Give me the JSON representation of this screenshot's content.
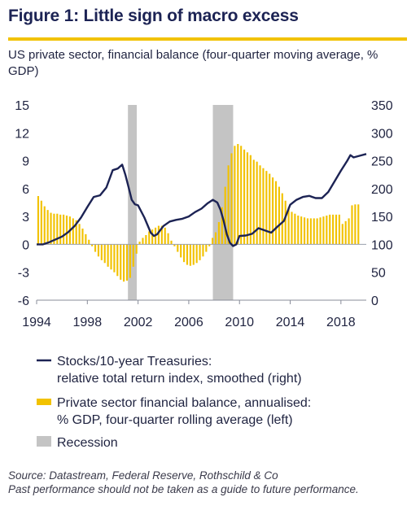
{
  "figure": {
    "title": "Figure 1: Little sign of macro excess",
    "subtitle": "US private sector, financial balance (four-quarter moving average, % GDP)",
    "source_line1": "Source: Datastream, Federal Reserve, Rothschild & Co",
    "source_line2": "Past performance should not be taken as a guide to future performance."
  },
  "colors": {
    "title": "#1c2354",
    "rule": "#f2c200",
    "bars": "#f2c200",
    "line": "#1c2354",
    "recession": "#c4c4c4"
  },
  "chart_data": {
    "type": "bar",
    "x_ticks": [
      1994,
      1998,
      2002,
      2006,
      2010,
      2014,
      2018
    ],
    "x_tick_labels": [
      "1994",
      "1998",
      "2002",
      "2006",
      "2010",
      "2014",
      "2018"
    ],
    "xlim": [
      1994,
      2020
    ],
    "y_left": {
      "lim": [
        -6,
        15
      ],
      "ticks": [
        15,
        12,
        9,
        6,
        3,
        0,
        -3,
        -6
      ],
      "tick_labels": [
        "15",
        "12",
        "9",
        "6",
        "3",
        "0",
        "-3",
        "-6"
      ]
    },
    "y_right": {
      "lim": [
        0,
        350
      ],
      "ticks": [
        350,
        300,
        250,
        200,
        150,
        100,
        50,
        0
      ],
      "tick_labels": [
        "350",
        "300",
        "250",
        "200",
        "150",
        "100",
        "50",
        "0"
      ]
    },
    "recessions": [
      {
        "start": 2001.2,
        "end": 2001.9
      },
      {
        "start": 2007.9,
        "end": 2009.5
      }
    ],
    "series": [
      {
        "name": "Private sector financial balance, annualised: % GDP, four-quarter rolling average (left)",
        "legend_lines": [
          "Private sector financial balance, annualised:",
          "% GDP, four-quarter rolling average (left)"
        ],
        "axis": "left",
        "kind": "bar",
        "x": [
          1994.0,
          1994.25,
          1994.5,
          1994.75,
          1995.0,
          1995.25,
          1995.5,
          1995.75,
          1996.0,
          1996.25,
          1996.5,
          1996.75,
          1997.0,
          1997.25,
          1997.5,
          1997.75,
          1998.0,
          1998.25,
          1998.5,
          1998.75,
          1999.0,
          1999.25,
          1999.5,
          1999.75,
          2000.0,
          2000.25,
          2000.5,
          2000.75,
          2001.0,
          2001.25,
          2001.5,
          2001.75,
          2002.0,
          2002.25,
          2002.5,
          2002.75,
          2003.0,
          2003.25,
          2003.5,
          2003.75,
          2004.0,
          2004.25,
          2004.5,
          2004.75,
          2005.0,
          2005.25,
          2005.5,
          2005.75,
          2006.0,
          2006.25,
          2006.5,
          2006.75,
          2007.0,
          2007.25,
          2007.5,
          2007.75,
          2008.0,
          2008.25,
          2008.5,
          2008.75,
          2009.0,
          2009.25,
          2009.5,
          2009.75,
          2010.0,
          2010.25,
          2010.5,
          2010.75,
          2011.0,
          2011.25,
          2011.5,
          2011.75,
          2012.0,
          2012.25,
          2012.5,
          2012.75,
          2013.0,
          2013.25,
          2013.5,
          2013.75,
          2014.0,
          2014.25,
          2014.5,
          2014.75,
          2015.0,
          2015.25,
          2015.5,
          2015.75,
          2016.0,
          2016.25,
          2016.5,
          2016.75,
          2017.0,
          2017.25,
          2017.5,
          2017.75,
          2018.0,
          2018.25,
          2018.5,
          2018.75,
          2019.0,
          2019.25
        ],
        "values": [
          5.2,
          4.7,
          4.1,
          3.7,
          3.4,
          3.3,
          3.3,
          3.2,
          3.2,
          3.1,
          3.0,
          2.8,
          2.6,
          2.2,
          1.7,
          1.1,
          0.5,
          -0.2,
          -0.8,
          -1.3,
          -1.7,
          -2.0,
          -2.4,
          -2.7,
          -3.0,
          -3.4,
          -3.8,
          -4.0,
          -3.9,
          -3.6,
          -2.4,
          -1.0,
          0.3,
          0.7,
          1.0,
          1.4,
          1.6,
          1.8,
          2.0,
          2.0,
          1.8,
          1.2,
          0.4,
          -0.2,
          -0.8,
          -1.4,
          -1.9,
          -2.2,
          -2.3,
          -2.2,
          -2.0,
          -1.7,
          -1.3,
          -0.8,
          -0.2,
          0.7,
          1.3,
          2.4,
          4.0,
          6.2,
          8.5,
          9.8,
          10.6,
          10.8,
          10.6,
          10.2,
          9.9,
          9.6,
          9.1,
          8.9,
          8.5,
          8.2,
          7.9,
          7.6,
          7.2,
          6.8,
          6.2,
          5.5,
          4.7,
          4.0,
          3.5,
          3.3,
          3.1,
          3.0,
          2.9,
          2.8,
          2.8,
          2.8,
          2.8,
          2.9,
          3.0,
          3.1,
          3.2,
          3.2,
          3.2,
          3.2,
          2.2,
          2.5,
          2.8,
          4.2,
          4.3,
          4.3
        ]
      },
      {
        "name": "Stocks/10-year Treasuries: relative total return index, smoothed (right)",
        "legend_lines": [
          "Stocks/10-year Treasuries:",
          "relative total return index, smoothed (right)"
        ],
        "axis": "right",
        "kind": "line",
        "x": [
          1994.0,
          1994.5,
          1995.0,
          1995.5,
          1996.0,
          1996.5,
          1997.0,
          1997.5,
          1998.0,
          1998.5,
          1999.0,
          1999.5,
          2000.0,
          2000.4,
          2000.75,
          2001.0,
          2001.25,
          2001.5,
          2001.75,
          2002.0,
          2002.5,
          2003.0,
          2003.25,
          2003.5,
          2004.0,
          2004.5,
          2005.0,
          2005.5,
          2006.0,
          2006.5,
          2007.0,
          2007.5,
          2007.9,
          2008.25,
          2008.5,
          2008.75,
          2009.0,
          2009.25,
          2009.5,
          2009.75,
          2010.0,
          2010.5,
          2011.0,
          2011.5,
          2012.0,
          2012.5,
          2013.0,
          2013.5,
          2014.0,
          2014.5,
          2015.0,
          2015.5,
          2016.0,
          2016.5,
          2017.0,
          2017.5,
          2018.0,
          2018.5,
          2018.75,
          2019.0,
          2019.5,
          2020.0
        ],
        "values": [
          100,
          100,
          104,
          109,
          114,
          122,
          133,
          148,
          167,
          185,
          188,
          202,
          233,
          236,
          243,
          225,
          203,
          180,
          172,
          170,
          148,
          121,
          115,
          118,
          133,
          141,
          144,
          146,
          150,
          158,
          164,
          174,
          180,
          175,
          162,
          142,
          118,
          103,
          97,
          100,
          115,
          116,
          119,
          129,
          125,
          121,
          132,
          142,
          171,
          180,
          185,
          187,
          183,
          183,
          194,
          213,
          232,
          250,
          260,
          256,
          259,
          262
        ]
      },
      {
        "name": "Recession",
        "legend_lines": [
          "Recession"
        ],
        "kind": "band"
      }
    ]
  }
}
